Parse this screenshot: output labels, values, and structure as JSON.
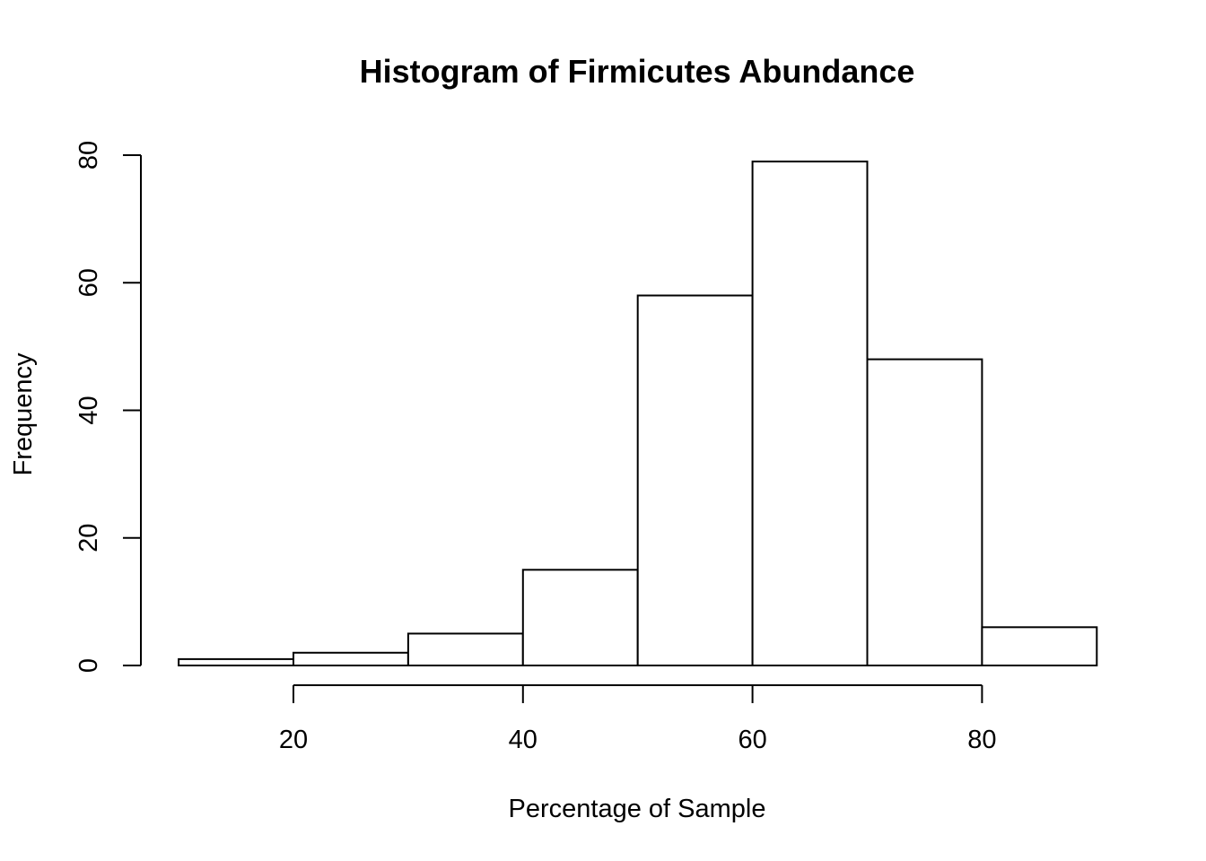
{
  "chart_data": {
    "type": "bar",
    "title": "Histogram of Firmicutes Abundance",
    "xlabel": "Percentage of Sample",
    "ylabel": "Frequency",
    "bins": [
      {
        "from": 10,
        "to": 20,
        "count": 1
      },
      {
        "from": 20,
        "to": 30,
        "count": 2
      },
      {
        "from": 30,
        "to": 40,
        "count": 5
      },
      {
        "from": 40,
        "to": 50,
        "count": 15
      },
      {
        "from": 50,
        "to": 60,
        "count": 58
      },
      {
        "from": 60,
        "to": 70,
        "count": 79
      },
      {
        "from": 70,
        "to": 80,
        "count": 48
      },
      {
        "from": 80,
        "to": 90,
        "count": 6
      }
    ],
    "x_ticks": [
      20,
      40,
      60,
      80
    ],
    "y_ticks": [
      0,
      20,
      40,
      60,
      80
    ],
    "xlim": [
      10,
      90
    ],
    "ylim": [
      0,
      80
    ],
    "grid": false,
    "colors": {
      "bar_fill": "#ffffff",
      "bar_stroke": "#000000"
    }
  }
}
